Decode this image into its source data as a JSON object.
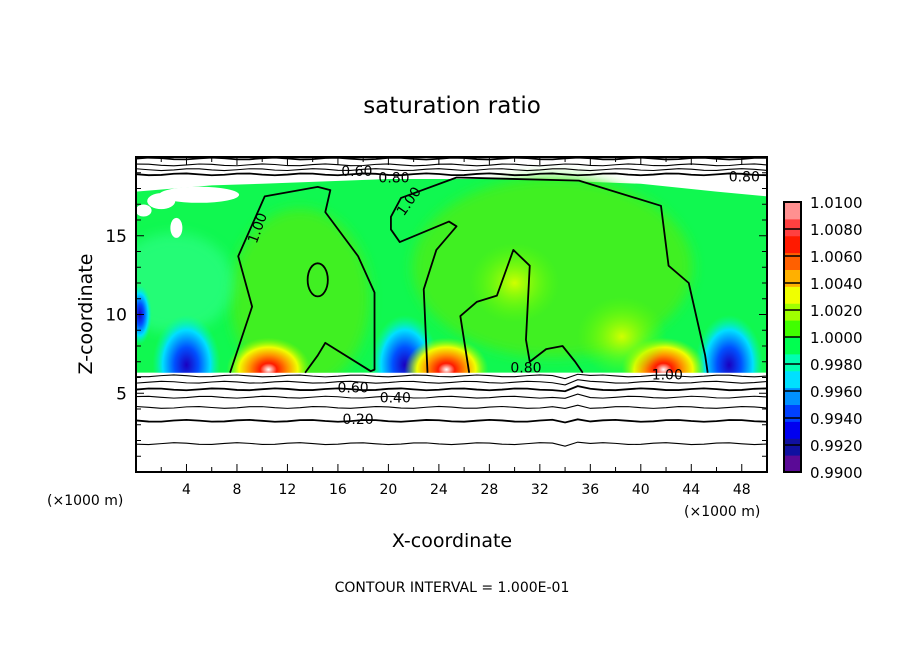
{
  "chart_data": {
    "type": "heatmap",
    "title": "saturation ratio",
    "xlabel": "X-coordinate",
    "ylabel": "Z-coordinate",
    "x_unit_left": "(×1000 m)",
    "x_unit_right": "(×1000 m)",
    "footer": "CONTOUR INTERVAL = 1.000E-01",
    "xlim": [
      0,
      50
    ],
    "ylim": [
      0,
      20
    ],
    "xticks": [
      4,
      8,
      12,
      16,
      20,
      24,
      28,
      32,
      36,
      40,
      44,
      48
    ],
    "xtick_labels": [
      "4",
      "8",
      "12",
      "16",
      "20",
      "24",
      "28",
      "32",
      "36",
      "40",
      "44",
      "48"
    ],
    "yticks": [
      5,
      10,
      15
    ],
    "ytick_labels": [
      "5",
      "10",
      "15"
    ],
    "colorbar": {
      "min": 0.99,
      "max": 1.01,
      "labels": [
        "1.0100",
        "1.0080",
        "1.0060",
        "1.0040",
        "1.0020",
        "1.0000",
        "0.9980",
        "0.9960",
        "0.9940",
        "0.9920",
        "0.9900"
      ],
      "colors": [
        "#5a0a96",
        "#1010a0",
        "#0000f0",
        "#0040ff",
        "#0090ff",
        "#00e0ff",
        "#00ffb0",
        "#00ff50",
        "#40ff00",
        "#a0ff00",
        "#f0ff00",
        "#ffb000",
        "#ff6000",
        "#ff1a00",
        "#ff4040",
        "#ff9090"
      ]
    },
    "field": {
      "cloud_base_z": 6.3,
      "cloud_top_z": 18.5,
      "background_value": 0.9985,
      "features": [
        {
          "kind": "dry",
          "x": 4.0,
          "z": 6.8,
          "value": 0.992
        },
        {
          "kind": "dry",
          "x": 21.3,
          "z": 6.8,
          "value": 0.993
        },
        {
          "kind": "dry",
          "x": 47.0,
          "z": 6.8,
          "value": 0.993
        },
        {
          "kind": "dry",
          "x": 0.3,
          "z": 10.0,
          "value": 0.995
        },
        {
          "kind": "moist",
          "x": 10.5,
          "z": 6.5,
          "value": 1.009
        },
        {
          "kind": "moist",
          "x": 24.6,
          "z": 6.5,
          "value": 1.008
        },
        {
          "kind": "moist",
          "x": 41.8,
          "z": 6.5,
          "value": 1.009
        },
        {
          "kind": "moist",
          "x": 38.5,
          "z": 8.6,
          "value": 1.004
        },
        {
          "kind": "moist",
          "x": 30.0,
          "z": 12.0,
          "value": 1.001
        }
      ]
    },
    "contours": [
      {
        "level": 1.0,
        "closed": true,
        "points": [
          [
            7.45,
            6.3
          ],
          [
            9.2,
            10.5
          ],
          [
            8.1,
            13.7
          ],
          [
            10.2,
            17.5
          ],
          [
            14.4,
            18.1
          ],
          [
            15.4,
            17.9
          ],
          [
            15.0,
            16.5
          ],
          [
            17.6,
            13.7
          ],
          [
            18.9,
            11.4
          ],
          [
            18.9,
            6.5
          ],
          [
            18.6,
            6.4
          ],
          [
            15.0,
            8.2
          ],
          [
            14.4,
            7.4
          ],
          [
            13.4,
            6.3
          ]
        ]
      },
      {
        "level": 1.0,
        "closed": false,
        "points": [
          [
            23.1,
            6.3
          ],
          [
            22.8,
            11.6
          ],
          [
            23.8,
            14.1
          ],
          [
            25.4,
            15.6
          ],
          [
            24.8,
            15.9
          ],
          [
            20.9,
            14.6
          ],
          [
            20.2,
            15.4
          ],
          [
            20.2,
            16.2
          ],
          [
            21.0,
            17.4
          ],
          [
            25.4,
            18.7
          ],
          [
            35.1,
            18.5
          ],
          [
            41.6,
            16.9
          ],
          [
            42.2,
            13.1
          ],
          [
            43.8,
            12.0
          ],
          [
            45.1,
            7.4
          ],
          [
            45.3,
            6.3
          ]
        ]
      },
      {
        "level": 1.0,
        "closed": false,
        "points": [
          [
            26.4,
            6.3
          ],
          [
            25.7,
            9.9
          ],
          [
            27.0,
            10.8
          ],
          [
            28.6,
            11.2
          ],
          [
            29.9,
            14.1
          ],
          [
            31.2,
            13.1
          ],
          [
            30.9,
            8.4
          ],
          [
            31.2,
            7.0
          ],
          [
            32.5,
            7.8
          ],
          [
            33.8,
            8.0
          ],
          [
            34.8,
            7.0
          ],
          [
            35.4,
            6.3
          ]
        ]
      },
      {
        "level": 1.0,
        "closed": true,
        "ellipse": [
          14.4,
          12.2,
          0.8,
          1.05
        ]
      }
    ],
    "hlines_z": [
      19.9,
      19.5,
      19.2,
      18.9,
      6.1,
      5.7,
      5.25,
      4.75,
      4.1,
      3.25,
      1.8
    ],
    "contour_labels": [
      {
        "text": "0.60",
        "x": 17.5,
        "z": 19.1
      },
      {
        "text": "0.80",
        "x": 17.5,
        "z": 18.7
      },
      {
        "text": "0.80",
        "x": 48.2,
        "z": 18.75
      },
      {
        "text": "1.00",
        "x": 9.6,
        "z": 15.5,
        "rot": -70
      },
      {
        "text": "1.00",
        "x": 21.6,
        "z": 17.2,
        "rot": -55
      },
      {
        "text": "0.80",
        "x": 30.9,
        "z": 6.65
      },
      {
        "text": "1.00",
        "x": 42.1,
        "z": 6.2
      },
      {
        "text": "0.60",
        "x": 17.2,
        "z": 5.36
      },
      {
        "text": "0.40",
        "x": 17.6,
        "z": 4.73
      },
      {
        "text": "0.20",
        "x": 17.6,
        "z": 3.35
      }
    ]
  }
}
